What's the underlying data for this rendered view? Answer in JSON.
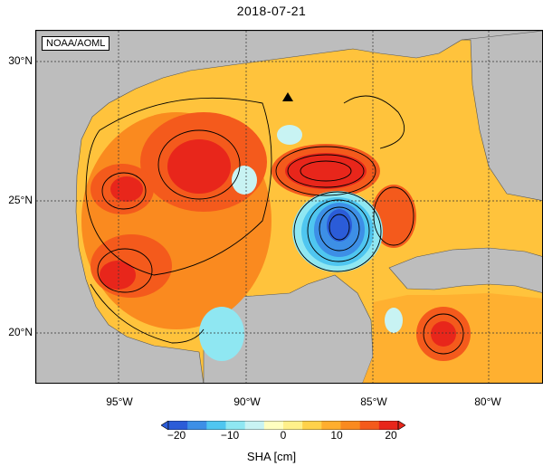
{
  "title": "2018-07-21",
  "credit": "NOAA/AOML",
  "y_axis_labels": [
    "30°N",
    "25°N",
    "20°N"
  ],
  "x_axis_labels": [
    "95°W",
    "90°W",
    "85°W",
    "80°W"
  ],
  "colorbar": {
    "ticks": [
      "−20",
      "−10",
      "0",
      "10",
      "20"
    ],
    "label": "SHA [cm]",
    "colors": [
      "#2b5cd8",
      "#3d8fe6",
      "#4fc6f0",
      "#8fe7f2",
      "#c8f3f3",
      "#ffffc0",
      "#fff08a",
      "#ffd24a",
      "#ffae2e",
      "#fa8a1f",
      "#f45a1c",
      "#e8261b"
    ]
  },
  "map": {
    "land_color": "#bdbdbd",
    "ocean_base_color": "#ffc33c",
    "marker": "triangle"
  }
}
